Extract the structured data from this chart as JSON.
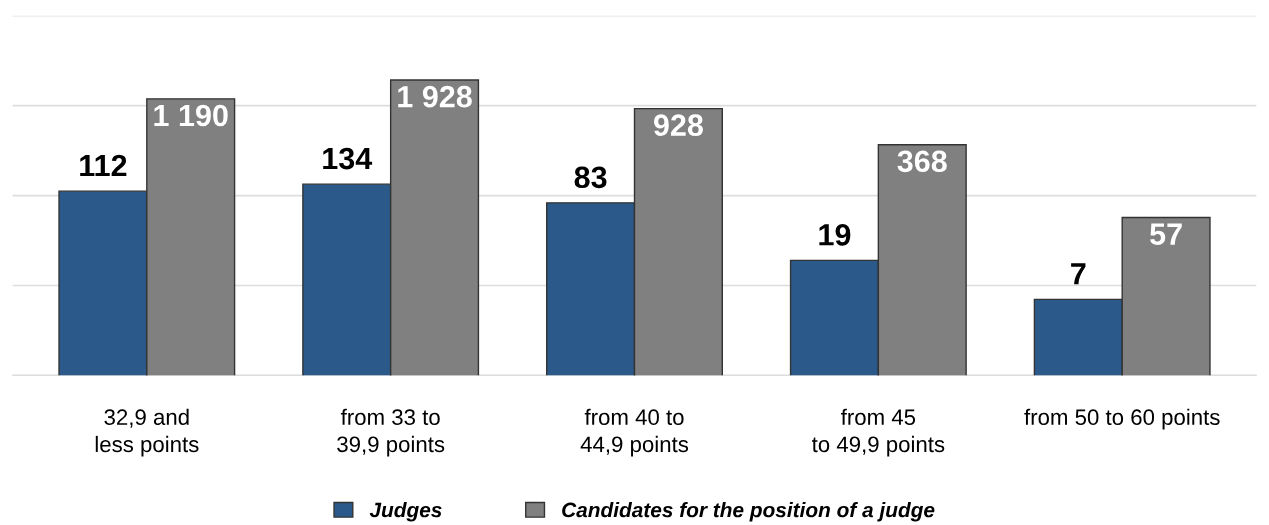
{
  "chart_data": {
    "type": "bar",
    "log": true,
    "categories": [
      "32,9 and\nless points",
      "from 33 to\n39,9 points",
      "from 40 to\n44,9 points",
      "from 45\nto 49,9 points",
      "from 50 to 60 points"
    ],
    "series": [
      {
        "name": "Judges",
        "color": "#2b5a8a",
        "values": [
          112,
          134,
          83,
          19,
          7
        ]
      },
      {
        "name": "Candidates for the position of a judge",
        "color": "#808080",
        "values": [
          1190,
          1928,
          928,
          368,
          57
        ]
      }
    ],
    "ylim": [
      1,
      10000
    ],
    "yticks": [
      {
        "value": 1,
        "label": null
      },
      {
        "value": 10,
        "label": null
      },
      {
        "value": 100,
        "label": null
      },
      {
        "value": 1000,
        "label": null
      },
      {
        "value": 10000,
        "label": null
      }
    ],
    "tick_labels": "x",
    "grid": "y",
    "legend": "bottom",
    "data_labels": true
  }
}
